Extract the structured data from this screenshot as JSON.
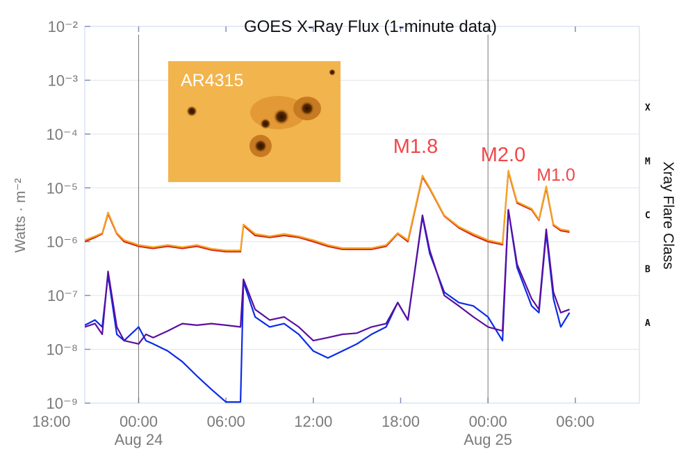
{
  "chart_data": {
    "type": "line",
    "title": "GOES X-Ray Flux (1-minute data)",
    "y_label": "Watts · m⁻²",
    "y2_label": "Xray Flare Class",
    "log_y": true,
    "grid": true,
    "inset_label": "AR4315",
    "annotations": [
      "M1.8",
      "M2.0",
      "M1.0"
    ],
    "xlim": [
      -3.7,
      34.4
    ],
    "xticks": [
      {
        "value": -6,
        "label": "18:00"
      },
      {
        "value": 0,
        "label": "00:00"
      },
      {
        "value": 6,
        "label": "06:00"
      },
      {
        "value": 12,
        "label": "12:00"
      },
      {
        "value": 18,
        "label": "18:00"
      },
      {
        "value": 24,
        "label": "00:00"
      },
      {
        "value": 30,
        "label": "06:00"
      }
    ],
    "date_labels": [
      {
        "value": 0,
        "label": "Aug 24"
      },
      {
        "value": 24,
        "label": "Aug 25"
      }
    ],
    "ylim": [
      1e-09,
      0.01
    ],
    "yticks": [
      {
        "value": 1e-09,
        "label": "10⁻⁹"
      },
      {
        "value": 1e-08,
        "label": "10⁻⁸"
      },
      {
        "value": 1e-07,
        "label": "10⁻⁷"
      },
      {
        "value": 1e-06,
        "label": "10⁻⁶"
      },
      {
        "value": 1e-05,
        "label": "10⁻⁵"
      },
      {
        "value": 0.0001,
        "label": "10⁻⁴"
      },
      {
        "value": 0.001,
        "label": "10⁻³"
      },
      {
        "value": 0.01,
        "label": "10⁻²"
      }
    ],
    "class_labels": [
      {
        "value": 3.16e-08,
        "label": "A"
      },
      {
        "value": 3.16e-07,
        "label": "B"
      },
      {
        "value": 3.16e-06,
        "label": "C"
      },
      {
        "value": 3.16e-05,
        "label": "M"
      },
      {
        "value": 0.000316,
        "label": "X"
      }
    ],
    "x": [
      -3.7,
      -3,
      -2.5,
      -2.1,
      -1.5,
      -1,
      0,
      0.5,
      1,
      2,
      3,
      4,
      5,
      6,
      7,
      7.2,
      8,
      9,
      10,
      11,
      12,
      13,
      14,
      15,
      16,
      17,
      17.8,
      18.5,
      19.5,
      20,
      21,
      22,
      23,
      24,
      25,
      25.4,
      26,
      27,
      27.5,
      28,
      28.5,
      29,
      29.6
    ],
    "series": [
      {
        "color": "#d62a1a",
        "values": [
          1e-06,
          1.2e-06,
          1.4e-06,
          3.3e-06,
          1.4e-06,
          1e-06,
          8.2e-07,
          7.8e-07,
          7.5e-07,
          8.2e-07,
          7.5e-07,
          8.2e-07,
          7e-07,
          6.5e-07,
          6.5e-07,
          2e-06,
          1.3e-06,
          1.2e-06,
          1.3e-06,
          1.2e-06,
          1e-06,
          8.2e-07,
          7.2e-07,
          7.2e-07,
          7.2e-07,
          8.2e-07,
          1.4e-06,
          1e-06,
          1.6e-05,
          9.6e-06,
          3e-06,
          1.8e-06,
          1.3e-06,
          1e-06,
          8.8e-07,
          2e-05,
          5.2e-06,
          3.9e-06,
          2.5e-06,
          1e-05,
          2e-06,
          1.6e-06,
          1.5e-06
        ]
      },
      {
        "color": "#f5a623",
        "values": [
          1.07e-06,
          1.26e-06,
          1.45e-06,
          3.5e-06,
          1.45e-06,
          1.07e-06,
          8.7e-07,
          8.3e-07,
          7.9e-07,
          8.7e-07,
          7.9e-07,
          8.7e-07,
          7.4e-07,
          6.9e-07,
          6.9e-07,
          2.1e-06,
          1.4e-06,
          1.26e-06,
          1.4e-06,
          1.26e-06,
          1.07e-06,
          8.7e-07,
          7.6e-07,
          7.6e-07,
          7.6e-07,
          8.7e-07,
          1.45e-06,
          1.07e-06,
          1.7e-05,
          1e-05,
          3.1e-06,
          1.9e-06,
          1.4e-06,
          1.07e-06,
          9.3e-07,
          2.1e-05,
          5.5e-06,
          4.1e-06,
          2.6e-06,
          1.07e-05,
          2.1e-06,
          1.7e-06,
          1.6e-06
        ]
      },
      {
        "color": "#0a2be8",
        "values": [
          2.8e-08,
          3.5e-08,
          2.6e-08,
          2.4e-07,
          1.9e-08,
          1.45e-08,
          2.6e-08,
          1.45e-08,
          1.26e-08,
          9.3e-09,
          5.9e-09,
          3.2e-09,
          1.8e-09,
          1.05e-09,
          1.05e-09,
          1.8e-07,
          4e-08,
          2.6e-08,
          3e-08,
          1.9e-08,
          9.3e-09,
          6.9e-09,
          9.3e-09,
          1.26e-08,
          1.9e-08,
          2.6e-08,
          7.4e-08,
          3.5e-08,
          2.9e-06,
          6e-07,
          1.15e-07,
          7.4e-08,
          6.4e-08,
          4e-08,
          1.45e-08,
          3.9e-06,
          3.3e-07,
          6.4e-08,
          4.8e-08,
          1.45e-06,
          8.7e-08,
          2.6e-08,
          4.8e-08
        ]
      },
      {
        "color": "#5a0fa0",
        "values": [
          2.6e-08,
          3e-08,
          1.9e-08,
          2.8e-07,
          2.6e-08,
          1.45e-08,
          1.26e-08,
          1.9e-08,
          1.65e-08,
          2.2e-08,
          3e-08,
          2.8e-08,
          3e-08,
          2.8e-08,
          2.6e-08,
          2e-07,
          5.5e-08,
          3.5e-08,
          4e-08,
          2.6e-08,
          1.45e-08,
          1.65e-08,
          1.9e-08,
          2e-08,
          2.6e-08,
          3e-08,
          7.4e-08,
          3.5e-08,
          3.1e-06,
          6.9e-07,
          1e-07,
          6.4e-08,
          4e-08,
          2.6e-08,
          2.2e-08,
          3.9e-06,
          3.8e-07,
          8.7e-08,
          5.5e-08,
          1.7e-06,
          1.15e-07,
          4.8e-08,
          5.5e-08
        ]
      }
    ]
  }
}
